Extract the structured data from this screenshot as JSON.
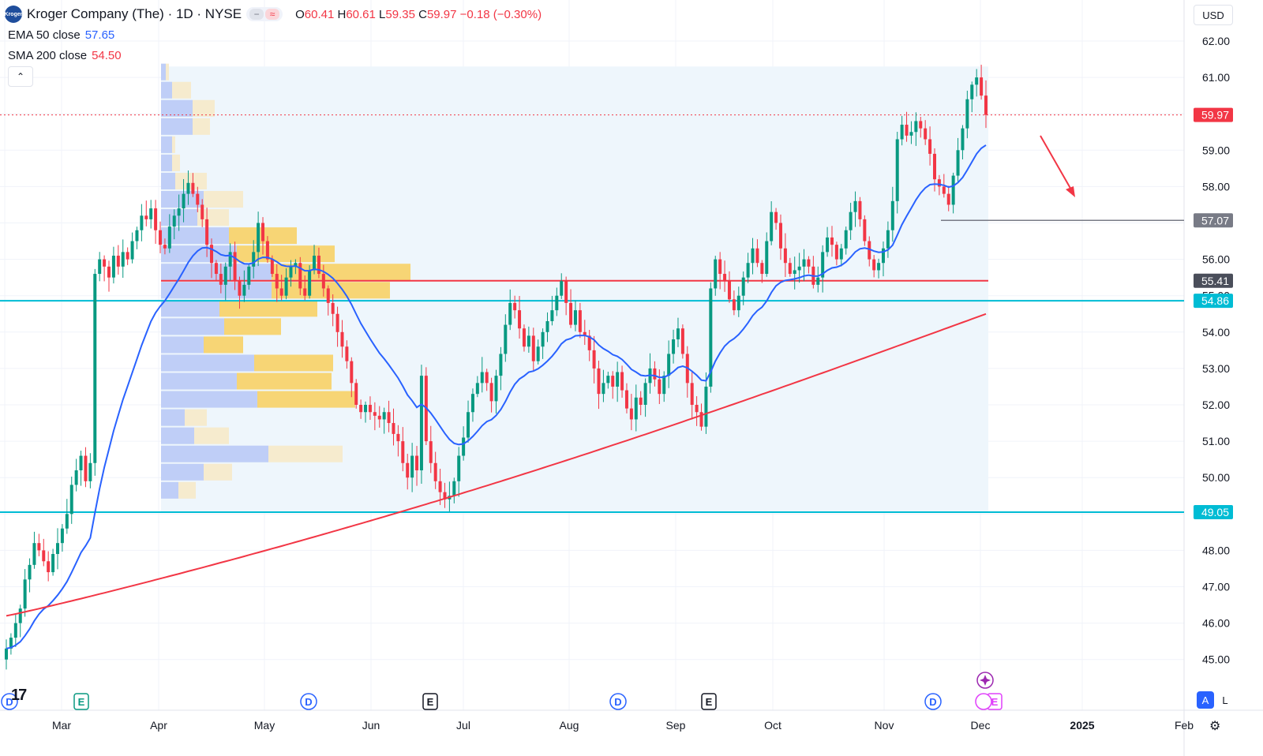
{
  "header": {
    "company": "Kroger Company (The)",
    "interval": "1D",
    "exchange": "NYSE",
    "symbol_line": "Kroger Company (The) · 1D · NYSE",
    "logo_text": "Kroger",
    "ohlc": {
      "o_label": "O",
      "o": "60.41",
      "h_label": "H",
      "h": "60.61",
      "l_label": "L",
      "l": "59.35",
      "c_label": "C",
      "c": "59.97",
      "change": "−0.18 (−0.30%)"
    },
    "pill_icons": [
      "minus-icon",
      "approx-icon"
    ]
  },
  "indicators": {
    "ema_label": "EMA 50 close",
    "ema_value": "57.65",
    "sma_label": "SMA 200 close",
    "sma_value": "54.50"
  },
  "controls": {
    "collapse_glyph": "⌃",
    "currency": "USD",
    "auto_label": "A",
    "log_label": "L",
    "settings_glyph": "⚙"
  },
  "colors": {
    "up": "#089981",
    "down": "#f23645",
    "ema": "#2962ff",
    "sma": "#f23645",
    "support": "#00bcd4",
    "poc": "#f23645",
    "vp_up": "#bccbf7",
    "vp_down": "#f5eacb",
    "vp_up_va": "#bccbf7",
    "vp_down_va": "#f7d36e",
    "range_bg": "#eef6fc"
  },
  "chart_data": {
    "type": "candlestick",
    "price_axis": [
      "62.00",
      "61.00",
      "60.00",
      "59.00",
      "58.00",
      "57.00",
      "56.00",
      "55.00",
      "54.00",
      "53.00",
      "52.00",
      "51.00",
      "50.00",
      "49.00",
      "48.00",
      "47.00",
      "46.00",
      "45.00"
    ],
    "time_axis": [
      "Mar",
      "Apr",
      "May",
      "Jun",
      "Jul",
      "Aug",
      "Sep",
      "Oct",
      "Nov",
      "Dec",
      "2025",
      "Feb"
    ],
    "ylim": [
      44.5,
      62.8
    ],
    "price_tags": [
      {
        "label": "59.97",
        "value": 59.97,
        "kind": "last"
      },
      {
        "label": "57.07",
        "value": 57.07,
        "kind": "level"
      },
      {
        "label": "55.41",
        "value": 55.41,
        "kind": "poc"
      },
      {
        "label": "54.86",
        "value": 54.86,
        "kind": "support"
      },
      {
        "label": "49.05",
        "value": 49.05,
        "kind": "support"
      }
    ],
    "horizontal_lines": [
      {
        "value": 54.86,
        "kind": "support"
      },
      {
        "value": 49.05,
        "kind": "support"
      },
      {
        "value": 55.41,
        "kind": "poc",
        "from": "Apr",
        "to": "Dec"
      },
      {
        "value": 57.07,
        "kind": "level",
        "from": "Nov",
        "to": "Dec"
      }
    ],
    "events": [
      {
        "type": "D",
        "at": "Feb"
      },
      {
        "type": "E",
        "at": "Mar"
      },
      {
        "type": "D",
        "at": "May"
      },
      {
        "type": "E",
        "at": "Jun"
      },
      {
        "type": "D",
        "at": "Aug"
      },
      {
        "type": "E",
        "at": "Sep"
      },
      {
        "type": "D",
        "at": "Nov"
      },
      {
        "type": "E",
        "at": "Dec"
      }
    ],
    "closes": [
      45.3,
      45.6,
      46.0,
      46.4,
      47.2,
      47.6,
      48.2,
      48.0,
      47.7,
      47.4,
      47.9,
      48.2,
      48.6,
      49.0,
      49.8,
      50.2,
      50.6,
      49.9,
      50.4,
      55.6,
      56.0,
      55.8,
      55.5,
      56.1,
      55.8,
      56.2,
      56.0,
      56.5,
      56.8,
      57.2,
      57.1,
      57.4,
      56.8,
      56.4,
      56.3,
      56.9,
      57.2,
      57.4,
      57.8,
      58.1,
      57.8,
      57.5,
      57.1,
      56.4,
      55.9,
      55.6,
      55.3,
      55.8,
      56.2,
      55.4,
      55.0,
      55.3,
      55.8,
      56.2,
      57.0,
      56.5,
      56.0,
      55.6,
      55.2,
      55.0,
      55.5,
      55.8,
      55.9,
      55.2,
      55.0,
      55.7,
      56.1,
      55.6,
      55.2,
      54.8,
      54.5,
      54.0,
      53.6,
      53.2,
      52.6,
      52.0,
      51.8,
      52.0,
      51.8,
      51.7,
      51.6,
      51.8,
      51.5,
      51.2,
      51.0,
      50.4,
      50.0,
      50.6,
      50.2,
      52.8,
      51.0,
      50.4,
      49.9,
      49.6,
      49.4,
      49.5,
      49.9,
      50.6,
      51.1,
      51.8,
      52.3,
      52.6,
      52.9,
      52.6,
      52.1,
      52.8,
      53.4,
      54.2,
      54.8,
      54.6,
      54.1,
      53.6,
      53.9,
      53.2,
      53.6,
      54.0,
      54.3,
      54.6,
      55.0,
      55.4,
      54.8,
      54.2,
      54.6,
      54.0,
      53.9,
      53.5,
      53.0,
      52.3,
      52.6,
      52.8,
      52.5,
      52.9,
      52.4,
      51.9,
      51.6,
      52.2,
      52.0,
      52.6,
      53.0,
      52.7,
      52.3,
      52.8,
      53.4,
      53.8,
      54.1,
      53.4,
      52.6,
      52.0,
      51.8,
      51.4,
      52.5,
      55.2,
      56.0,
      55.6,
      55.4,
      54.9,
      54.6,
      55.0,
      55.5,
      55.9,
      56.3,
      55.9,
      55.6,
      56.5,
      57.3,
      57.0,
      56.3,
      55.9,
      55.6,
      55.7,
      55.8,
      56.0,
      55.8,
      55.3,
      55.5,
      56.2,
      56.6,
      56.4,
      56.0,
      56.3,
      56.8,
      57.3,
      57.6,
      57.1,
      56.5,
      56.0,
      55.7,
      55.9,
      56.3,
      56.8,
      57.6,
      59.3,
      59.7,
      59.4,
      59.5,
      59.8,
      59.6,
      59.3,
      58.9,
      58.2,
      58.0,
      57.8,
      57.5,
      58.3,
      59.0,
      59.6,
      60.4,
      60.8,
      61.0,
      60.5,
      59.97
    ]
  },
  "volume_profile": {
    "range_from": "Apr",
    "range_to": "Dec"
  }
}
